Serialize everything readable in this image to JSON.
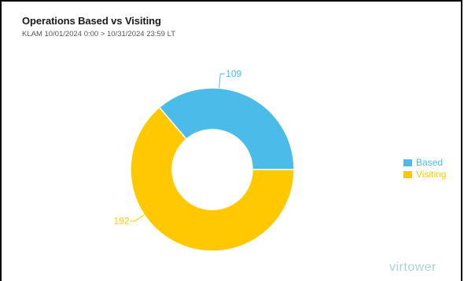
{
  "header": {
    "title": "Operations Based vs Visiting",
    "subtitle": "KLAM 10/01/2024 0:00 > 10/31/2024 23:59 LT"
  },
  "watermark": "virtower",
  "colors": {
    "based": "#4bbbea",
    "visiting": "#ffc800"
  },
  "chart_data": {
    "type": "pie",
    "variant": "donut",
    "title": "Operations Based vs Visiting",
    "series": [
      {
        "name": "Based",
        "value": 109,
        "label": "109",
        "color": "#4bbbea"
      },
      {
        "name": "Visiting",
        "value": 192,
        "label": "192",
        "color": "#ffc800"
      }
    ],
    "legend_position": "right"
  }
}
